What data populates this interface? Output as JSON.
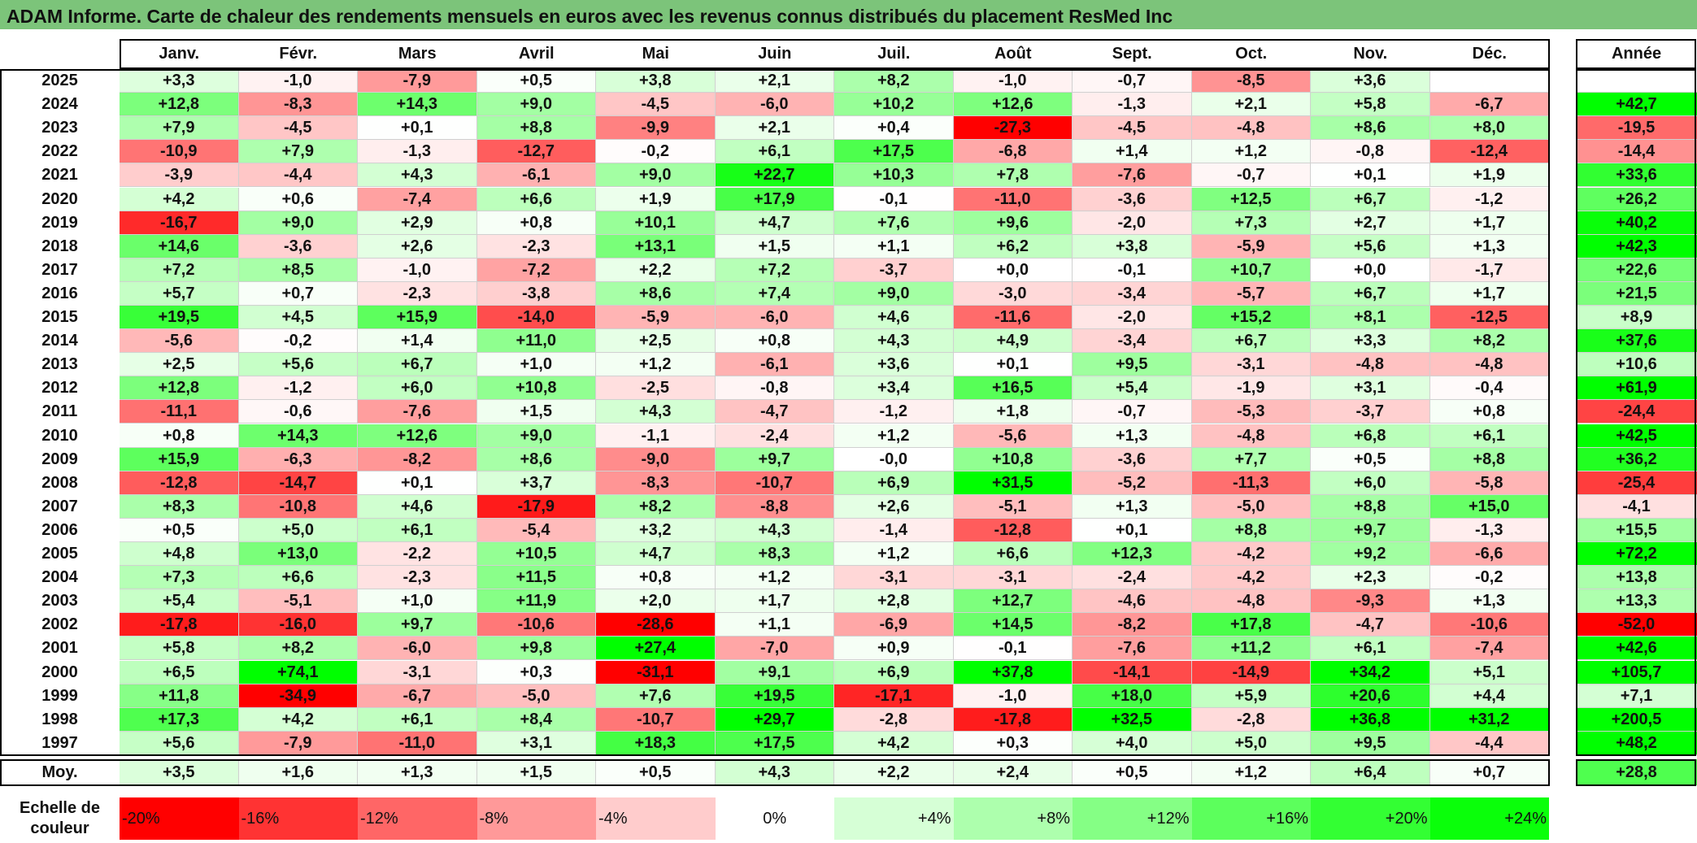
{
  "title": "ADAM Informe. Carte de chaleur des rendements mensuels en euros avec les revenus connus distribués du placement ResMed Inc",
  "chart_data": {
    "type": "heatmap",
    "title": "ADAM Informe. Carte de chaleur des rendements mensuels en euros avec les revenus connus distribués du placement ResMed Inc",
    "columns": [
      "Janv.",
      "Févr.",
      "Mars",
      "Avril",
      "Mai",
      "Juin",
      "Juil.",
      "Août",
      "Sept.",
      "Oct.",
      "Nov.",
      "Déc."
    ],
    "year_header": "Année",
    "rows": [
      {
        "label": "2025",
        "values": [
          "+3,3",
          "-1,0",
          "-7,9",
          "+0,5",
          "+3,8",
          "+2,1",
          "+8,2",
          "-1,0",
          "-0,7",
          "-8,5",
          "+3,6",
          ""
        ],
        "year": ""
      },
      {
        "label": "2024",
        "values": [
          "+12,8",
          "-8,3",
          "+14,3",
          "+9,0",
          "-4,5",
          "-6,0",
          "+10,2",
          "+12,6",
          "-1,3",
          "+2,1",
          "+5,8",
          "-6,7"
        ],
        "year": "+42,7"
      },
      {
        "label": "2023",
        "values": [
          "+7,9",
          "-4,5",
          "+0,1",
          "+8,8",
          "-9,9",
          "+2,1",
          "+0,4",
          "-27,3",
          "-4,5",
          "-4,8",
          "+8,6",
          "+8,0"
        ],
        "year": "-19,5"
      },
      {
        "label": "2022",
        "values": [
          "-10,9",
          "+7,9",
          "-1,3",
          "-12,7",
          "-0,2",
          "+6,1",
          "+17,5",
          "-6,8",
          "+1,4",
          "+1,2",
          "-0,8",
          "-12,4"
        ],
        "year": "-14,4"
      },
      {
        "label": "2021",
        "values": [
          "-3,9",
          "-4,4",
          "+4,3",
          "-6,1",
          "+9,0",
          "+22,7",
          "+10,3",
          "+7,8",
          "-7,6",
          "-0,7",
          "+0,1",
          "+1,9"
        ],
        "year": "+33,6"
      },
      {
        "label": "2020",
        "values": [
          "+4,2",
          "+0,6",
          "-7,4",
          "+6,6",
          "+1,9",
          "+17,9",
          "-0,1",
          "-11,0",
          "-3,6",
          "+12,5",
          "+6,7",
          "-1,2"
        ],
        "year": "+26,2"
      },
      {
        "label": "2019",
        "values": [
          "-16,7",
          "+9,0",
          "+2,9",
          "+0,8",
          "+10,1",
          "+4,7",
          "+7,6",
          "+9,6",
          "-2,0",
          "+7,3",
          "+2,7",
          "+1,7"
        ],
        "year": "+40,2"
      },
      {
        "label": "2018",
        "values": [
          "+14,6",
          "-3,6",
          "+2,6",
          "-2,3",
          "+13,1",
          "+1,5",
          "+1,1",
          "+6,2",
          "+3,8",
          "-5,9",
          "+5,6",
          "+1,3"
        ],
        "year": "+42,3"
      },
      {
        "label": "2017",
        "values": [
          "+7,2",
          "+8,5",
          "-1,0",
          "-7,2",
          "+2,2",
          "+7,2",
          "-3,7",
          "+0,0",
          "-0,1",
          "+10,7",
          "+0,0",
          "-1,7"
        ],
        "year": "+22,6"
      },
      {
        "label": "2016",
        "values": [
          "+5,7",
          "+0,7",
          "-2,3",
          "-3,8",
          "+8,6",
          "+7,4",
          "+9,0",
          "-3,0",
          "-3,4",
          "-5,7",
          "+6,7",
          "+1,7"
        ],
        "year": "+21,5"
      },
      {
        "label": "2015",
        "values": [
          "+19,5",
          "+4,5",
          "+15,9",
          "-14,0",
          "-5,9",
          "-6,0",
          "+4,6",
          "-11,6",
          "-2,0",
          "+15,2",
          "+8,1",
          "-12,5"
        ],
        "year": "+8,9"
      },
      {
        "label": "2014",
        "values": [
          "-5,6",
          "-0,2",
          "+1,4",
          "+11,0",
          "+2,5",
          "+0,8",
          "+4,3",
          "+4,9",
          "-3,4",
          "+6,7",
          "+3,3",
          "+8,2"
        ],
        "year": "+37,6"
      },
      {
        "label": "2013",
        "values": [
          "+2,5",
          "+5,6",
          "+6,7",
          "+1,0",
          "+1,2",
          "-6,1",
          "+3,6",
          "+0,1",
          "+9,5",
          "-3,1",
          "-4,8",
          "-4,8"
        ],
        "year": "+10,6"
      },
      {
        "label": "2012",
        "values": [
          "+12,8",
          "-1,2",
          "+6,0",
          "+10,8",
          "-2,5",
          "-0,8",
          "+3,4",
          "+16,5",
          "+5,4",
          "-1,9",
          "+3,1",
          "-0,4"
        ],
        "year": "+61,9"
      },
      {
        "label": "2011",
        "values": [
          "-11,1",
          "-0,6",
          "-7,6",
          "+1,5",
          "+4,3",
          "-4,7",
          "-1,2",
          "+1,8",
          "-0,7",
          "-5,3",
          "-3,7",
          "+0,8"
        ],
        "year": "-24,4"
      },
      {
        "label": "2010",
        "values": [
          "+0,8",
          "+14,3",
          "+12,6",
          "+9,0",
          "-1,1",
          "-2,4",
          "+1,2",
          "-5,6",
          "+1,3",
          "-4,8",
          "+6,8",
          "+6,1"
        ],
        "year": "+42,5"
      },
      {
        "label": "2009",
        "values": [
          "+15,9",
          "-6,3",
          "-8,2",
          "+8,6",
          "-9,0",
          "+9,7",
          "-0,0",
          "+10,8",
          "-3,6",
          "+7,7",
          "+0,5",
          "+8,8"
        ],
        "year": "+36,2"
      },
      {
        "label": "2008",
        "values": [
          "-12,8",
          "-14,7",
          "+0,1",
          "+3,7",
          "-8,3",
          "-10,7",
          "+6,9",
          "+31,5",
          "-5,2",
          "-11,3",
          "+6,0",
          "-5,8"
        ],
        "year": "-25,4"
      },
      {
        "label": "2007",
        "values": [
          "+8,3",
          "-10,8",
          "+4,6",
          "-17,9",
          "+8,2",
          "-8,8",
          "+2,6",
          "-5,1",
          "+1,3",
          "-5,0",
          "+8,8",
          "+15,0"
        ],
        "year": "-4,1"
      },
      {
        "label": "2006",
        "values": [
          "+0,5",
          "+5,0",
          "+6,1",
          "-5,4",
          "+3,2",
          "+4,3",
          "-1,4",
          "-12,8",
          "+0,1",
          "+8,8",
          "+9,7",
          "-1,3"
        ],
        "year": "+15,5"
      },
      {
        "label": "2005",
        "values": [
          "+4,8",
          "+13,0",
          "-2,2",
          "+10,5",
          "+4,7",
          "+8,3",
          "+1,2",
          "+6,6",
          "+12,3",
          "-4,2",
          "+9,2",
          "-6,6"
        ],
        "year": "+72,2"
      },
      {
        "label": "2004",
        "values": [
          "+7,3",
          "+6,6",
          "-2,3",
          "+11,5",
          "+0,8",
          "+1,2",
          "-3,1",
          "-3,1",
          "-2,4",
          "-4,2",
          "+2,3",
          "-0,2"
        ],
        "year": "+13,8"
      },
      {
        "label": "2003",
        "values": [
          "+5,4",
          "-5,1",
          "+1,0",
          "+11,9",
          "+2,0",
          "+1,7",
          "+2,8",
          "+12,7",
          "-4,6",
          "-4,8",
          "-9,3",
          "+1,3"
        ],
        "year": "+13,3"
      },
      {
        "label": "2002",
        "values": [
          "-17,8",
          "-16,0",
          "+9,7",
          "-10,6",
          "-28,6",
          "+1,1",
          "-6,9",
          "+14,5",
          "-8,2",
          "+17,8",
          "-4,7",
          "-10,6"
        ],
        "year": "-52,0"
      },
      {
        "label": "2001",
        "values": [
          "+5,8",
          "+8,2",
          "-6,0",
          "+9,8",
          "+27,4",
          "-7,0",
          "+0,9",
          "-0,1",
          "-7,6",
          "+11,2",
          "+6,1",
          "-7,4"
        ],
        "year": "+42,6"
      },
      {
        "label": "2000",
        "values": [
          "+6,5",
          "+74,1",
          "-3,1",
          "+0,3",
          "-31,1",
          "+9,1",
          "+6,9",
          "+37,8",
          "-14,1",
          "-14,9",
          "+34,2",
          "+5,1"
        ],
        "year": "+105,7"
      },
      {
        "label": "1999",
        "values": [
          "+11,8",
          "-34,9",
          "-6,7",
          "-5,0",
          "+7,6",
          "+19,5",
          "-17,1",
          "-1,0",
          "+18,0",
          "+5,9",
          "+20,6",
          "+4,4"
        ],
        "year": "+7,1"
      },
      {
        "label": "1998",
        "values": [
          "+17,3",
          "+4,2",
          "+6,1",
          "+8,4",
          "-10,7",
          "+29,7",
          "-2,8",
          "-17,8",
          "+32,5",
          "-2,8",
          "+36,8",
          "+31,2"
        ],
        "year": "+200,5"
      },
      {
        "label": "1997",
        "values": [
          "+5,6",
          "-7,9",
          "-11,0",
          "+3,1",
          "+18,3",
          "+17,5",
          "+4,2",
          "+0,3",
          "+4,0",
          "+5,0",
          "+9,5",
          "-4,4"
        ],
        "year": "+48,2"
      }
    ],
    "average_row": {
      "label": "Moy.",
      "values": [
        "+3,5",
        "+1,6",
        "+1,3",
        "+1,5",
        "+0,5",
        "+4,3",
        "+2,2",
        "+2,4",
        "+0,5",
        "+1,2",
        "+6,4",
        "+0,7"
      ],
      "year": "+28,8"
    },
    "scale": {
      "label": "Echelle de couleur",
      "steps": [
        {
          "label": "-20%",
          "color": "#ff0000"
        },
        {
          "label": "-16%",
          "color": "#ff3333"
        },
        {
          "label": "-12%",
          "color": "#ff6666"
        },
        {
          "label": "-8%",
          "color": "#ff9999"
        },
        {
          "label": "-4%",
          "color": "#ffcccc"
        },
        {
          "label": "0%",
          "color": "#ffffff"
        },
        {
          "label": "+4%",
          "color": "#d6ffd6"
        },
        {
          "label": "+8%",
          "color": "#adffad"
        },
        {
          "label": "+12%",
          "color": "#85ff85"
        },
        {
          "label": "+16%",
          "color": "#5cff5c"
        },
        {
          "label": "+20%",
          "color": "#33ff33"
        },
        {
          "label": "+24%",
          "color": "#0aff0a"
        }
      ]
    }
  }
}
